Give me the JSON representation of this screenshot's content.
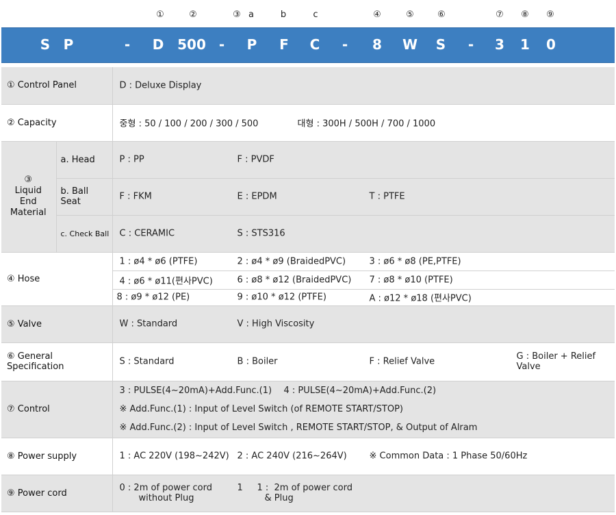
{
  "header": {
    "markers": [
      "①",
      "②",
      "③",
      "a",
      "b",
      "c",
      "④",
      "⑤",
      "⑥",
      "⑦",
      "⑧",
      "⑨"
    ],
    "code": [
      "S",
      "P",
      "-",
      "D",
      "500",
      "-",
      "P",
      "F",
      "C",
      "-",
      "8",
      "W",
      "S",
      "-",
      "3",
      "1",
      "0"
    ]
  },
  "rows": {
    "control_panel": {
      "label": "① Control Panel",
      "value": "D :  Deluxe Display"
    },
    "capacity": {
      "label": "② Capacity",
      "v1": "중형 : 50 / 100 / 200 / 300 / 500",
      "v2": "대형 : 300H / 500H / 700 / 1000"
    },
    "liquid": {
      "label_num": "③",
      "label_l1": "Liquid",
      "label_l2": "End",
      "label_l3": "Material",
      "head": {
        "label": "a. Head",
        "o1": "P :  PP",
        "o2": "F :  PVDF"
      },
      "ball_seat": {
        "label": "b. Ball Seat",
        "o1": "F :  FKM",
        "o2": "E :  EPDM",
        "o3": "T :  PTFE"
      },
      "check_ball": {
        "label": "c. Check Ball",
        "o1": "C :  CERAMIC",
        "o2": "S :  STS316"
      }
    },
    "hose": {
      "label": "④ Hose",
      "r1": [
        "1 :  ø4 * ø6 (PTFE)",
        "2 :  ø4 * ø9 (BraidedPVC)",
        "3 :  ø6 * ø8 (PE,PTFE)"
      ],
      "r2": [
        "4 :  ø6 * ø11(편사PVC)",
        "6 :  ø8 * ø12 (BraidedPVC)",
        "7 :  ø8 * ø10 (PTFE)"
      ],
      "r3": [
        "8 :  ø9 * ø12 (PE)",
        "9 :  ø10 * ø12 (PTFE)",
        "A :  ø12 * ø18 (편사PVC)"
      ]
    },
    "valve": {
      "label": "⑤ Valve",
      "o1": "W :  Standard",
      "o2": "V :  High Viscosity"
    },
    "general": {
      "label": "⑥ General Specification",
      "o1": "S :  Standard",
      "o2": "B :  Boiler",
      "o3": "F :  Relief Valve",
      "o4a": "G :  Boiler + Relief",
      "o4b": "Valve"
    },
    "control": {
      "label": "⑦ Control",
      "o1": "3 :  PULSE(4~20mA)+Add.Func.(1)",
      "o2": "4 :  PULSE(4~20mA)+Add.Func.(2)",
      "n1": "※ Add.Func.(1) : Input of Level Switch (of REMOTE START/STOP)",
      "n2": "※ Add.Func.(2) : Input of Level Switch , REMOTE START/STOP, & Output of Alram"
    },
    "power_supply": {
      "label": "⑧ Power supply",
      "o1": "1 :  AC 220V (198~242V)",
      "o2": "2 :  AC 240V (216~264V)",
      "note": "※ Common Data : 1 Phase 50/60Hz"
    },
    "power_cord": {
      "label": "⑨ Power cord",
      "o1a": "0 :  2m of power cord",
      "o1b": "without Plug",
      "o2a": "1     1 :  2m of power cord",
      "o2b": "& Plug"
    }
  }
}
